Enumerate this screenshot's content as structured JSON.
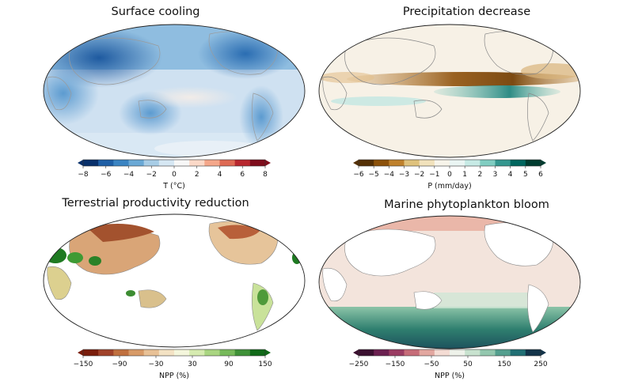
{
  "figure": {
    "panels": [
      {
        "id": "surface-cooling",
        "title": "Surface cooling",
        "colorbar": {
          "label": "T (°C)",
          "ticks": [
            "−8",
            "−6",
            "−4",
            "−2",
            "0",
            "2",
            "4",
            "6",
            "8"
          ],
          "min": -8,
          "max": 8,
          "colors": [
            "#08306b",
            "#1f5fa6",
            "#3b84c2",
            "#6aa9d6",
            "#a8cde6",
            "#d6e7f3",
            "#f7f7f7",
            "#fbd9c8",
            "#f4a78a",
            "#de6a54",
            "#b8282f",
            "#7f0d1c"
          ]
        }
      },
      {
        "id": "precipitation-decrease",
        "title": "Precipitation decrease",
        "colorbar": {
          "label": "P (mm/day)",
          "ticks": [
            "−6",
            "−5",
            "−4",
            "−3",
            "−2",
            "−1",
            "0",
            "1",
            "2",
            "3",
            "4",
            "5",
            "6"
          ],
          "min": -6,
          "max": 6,
          "colors": [
            "#543005",
            "#8c510a",
            "#bf812d",
            "#dfc27d",
            "#f1e2bc",
            "#f7f4ea",
            "#eaf5f3",
            "#c7eae5",
            "#80cdc1",
            "#35978f",
            "#01665e",
            "#003c30"
          ]
        }
      },
      {
        "id": "terrestrial-productivity-reduction",
        "title": "Terrestrial productivity reduction",
        "colorbar": {
          "label": "NPP (%)",
          "ticks": [
            "−150",
            "−90",
            "−30",
            "30",
            "90",
            "150"
          ],
          "min": -150,
          "max": 150,
          "colors": [
            "#7a1d0c",
            "#a0422a",
            "#c0703f",
            "#d79a67",
            "#e8c196",
            "#f3e2c4",
            "#f4f6dc",
            "#d6ebb0",
            "#a9d581",
            "#76b95a",
            "#3f9138",
            "#116a19"
          ]
        }
      },
      {
        "id": "marine-phytoplankton-bloom",
        "title": "Marine phytoplankton bloom",
        "colorbar": {
          "label": "NPP (%)",
          "ticks": [
            "−250",
            "−150",
            "−50",
            "50",
            "150",
            "250"
          ],
          "min": -250,
          "max": 250,
          "colors": [
            "#3b1030",
            "#6b2050",
            "#9a3c62",
            "#c66c78",
            "#e2a7a0",
            "#f4dcd4",
            "#eef2ea",
            "#c8e2cf",
            "#93c7ae",
            "#549f8e",
            "#216f74",
            "#13344a"
          ]
        }
      }
    ]
  }
}
